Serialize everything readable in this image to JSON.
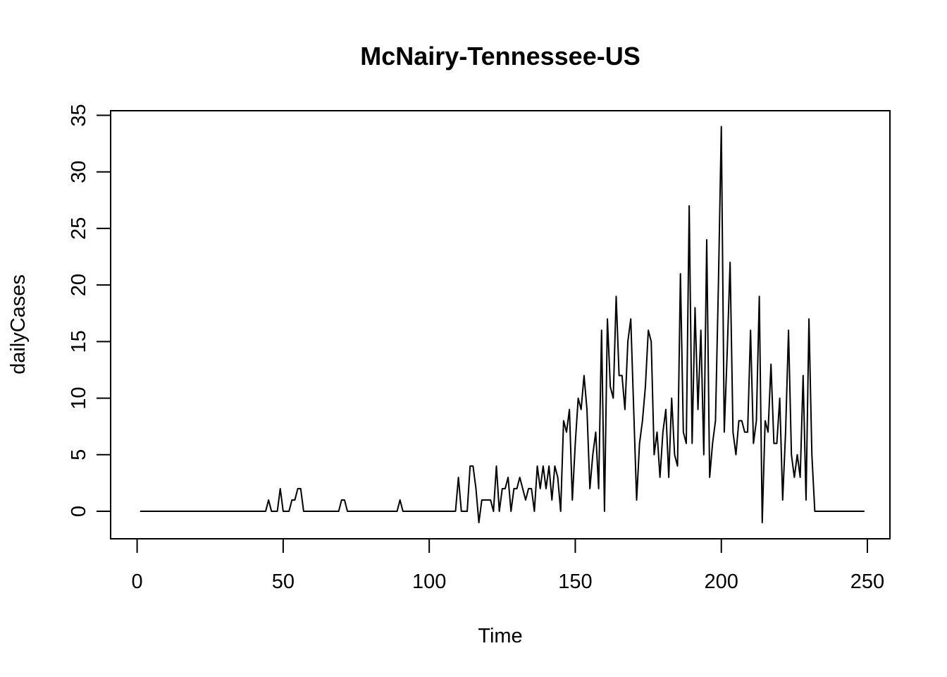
{
  "chart_data": {
    "type": "line",
    "title": "McNairy-Tennessee-US",
    "xlabel": "Time",
    "ylabel": "dailyCases",
    "xlim": [
      1,
      248
    ],
    "ylim": [
      -1,
      34
    ],
    "xticks": [
      0,
      50,
      100,
      150,
      200,
      250
    ],
    "yticks": [
      0,
      5,
      10,
      15,
      20,
      25,
      30,
      35
    ],
    "grid": false,
    "legend": "none",
    "line_color": "#000000",
    "x_start": 1,
    "values": [
      0,
      0,
      0,
      0,
      0,
      0,
      0,
      0,
      0,
      0,
      0,
      0,
      0,
      0,
      0,
      0,
      0,
      0,
      0,
      0,
      0,
      0,
      0,
      0,
      0,
      0,
      0,
      0,
      0,
      0,
      0,
      0,
      0,
      0,
      0,
      0,
      0,
      0,
      0,
      0,
      0,
      0,
      0,
      0,
      1,
      0,
      0,
      0,
      2,
      0,
      0,
      0,
      1,
      1,
      2,
      2,
      0,
      0,
      0,
      0,
      0,
      0,
      0,
      0,
      0,
      0,
      0,
      0,
      0,
      1,
      1,
      0,
      0,
      0,
      0,
      0,
      0,
      0,
      0,
      0,
      0,
      0,
      0,
      0,
      0,
      0,
      0,
      0,
      0,
      1,
      0,
      0,
      0,
      0,
      0,
      0,
      0,
      0,
      0,
      0,
      0,
      0,
      0,
      0,
      0,
      0,
      0,
      0,
      0,
      3,
      0,
      0,
      0,
      4,
      4,
      2,
      -1,
      1,
      1,
      1,
      1,
      0,
      4,
      0,
      2,
      2,
      3,
      0,
      2,
      2,
      3,
      2,
      1,
      2,
      2,
      0,
      4,
      2,
      4,
      2,
      4,
      1,
      4,
      3,
      0,
      8,
      7,
      9,
      1,
      6,
      10,
      9,
      12,
      9,
      2,
      5,
      7,
      2,
      16,
      0,
      17,
      11,
      10,
      19,
      12,
      12,
      9,
      15,
      17,
      9,
      1,
      6,
      8,
      11,
      16,
      15,
      5,
      7,
      3,
      7,
      9,
      3,
      10,
      5,
      4,
      21,
      7,
      6,
      27,
      6,
      18,
      9,
      16,
      5,
      24,
      3,
      6,
      8,
      20,
      34,
      7,
      14,
      22,
      7,
      5,
      8,
      8,
      7,
      7,
      16,
      6,
      8,
      19,
      -1,
      8,
      7,
      13,
      6,
      6,
      10,
      1,
      7,
      16,
      5,
      3,
      5,
      3,
      12,
      1,
      17,
      5,
      0,
      0,
      0,
      0,
      0,
      0,
      0,
      0,
      0,
      0,
      0,
      0,
      0,
      0,
      0,
      0,
      0,
      0
    ]
  }
}
